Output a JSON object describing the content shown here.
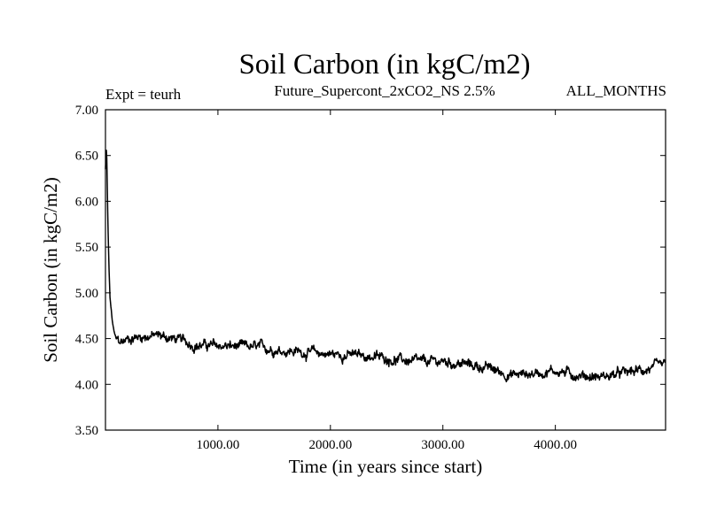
{
  "chart_data": {
    "type": "line",
    "title": "Soil Carbon (in kgC/m2)",
    "subtitle": "Future_Supercont_2xCO2_NS 2.5%",
    "left_note": "Expt = teurh",
    "right_note": "ALL_MONTHS",
    "xlabel": "Time (in years since start)",
    "ylabel": "Soil Carbon (in kgC/m2)",
    "xlim": [
      0,
      4980
    ],
    "ylim": [
      3.5,
      7.0
    ],
    "xticks": [
      1000,
      2000,
      3000,
      4000
    ],
    "xtick_labels": [
      "1000.00",
      "2000.00",
      "3000.00",
      "4000.00"
    ],
    "yticks": [
      3.5,
      4.0,
      4.5,
      5.0,
      5.5,
      6.0,
      6.5,
      7.0
    ],
    "ytick_labels": [
      "3.50",
      "4.00",
      "4.50",
      "5.00",
      "5.50",
      "6.00",
      "6.50",
      "7.00"
    ],
    "grid": false,
    "series": [
      {
        "color": "#000000",
        "x": [
          0,
          10,
          20,
          30,
          40,
          60,
          80,
          100,
          150,
          200,
          300,
          400,
          500,
          600,
          700,
          800,
          1000,
          1200,
          1400,
          1600,
          1800,
          2000,
          2200,
          2400,
          2600,
          2800,
          3000,
          3200,
          3400,
          3600,
          3800,
          4000,
          4200,
          4400,
          4600,
          4800,
          4980
        ],
        "y": [
          6.35,
          6.6,
          5.9,
          5.3,
          4.95,
          4.7,
          4.55,
          4.48,
          4.46,
          4.5,
          4.52,
          4.53,
          4.53,
          4.5,
          4.47,
          4.43,
          4.42,
          4.41,
          4.4,
          4.37,
          4.35,
          4.33,
          4.32,
          4.3,
          4.27,
          4.24,
          4.25,
          4.22,
          4.18,
          4.1,
          4.12,
          4.15,
          4.1,
          4.08,
          4.12,
          4.16,
          4.2
        ]
      }
    ]
  }
}
